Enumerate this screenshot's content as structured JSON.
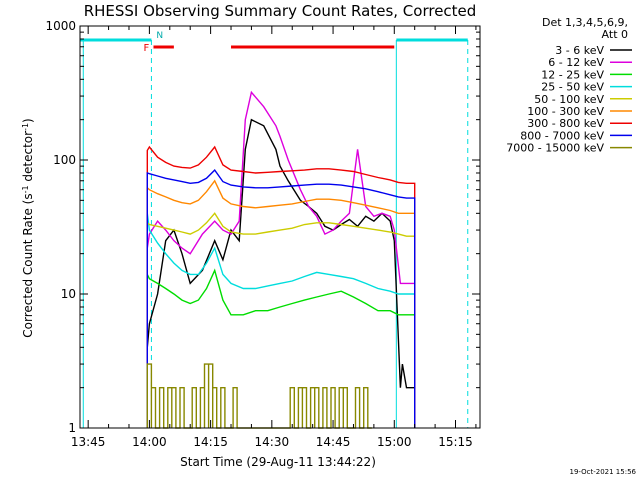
{
  "chart_data": {
    "type": "line",
    "title": "RHESSI Observing Summary Count Rates, Corrected",
    "xlabel": "Start Time (29-Aug-11 13:44:22)",
    "ylabel_main": "Corrected Count Rate (s",
    "ylabel_sup1": "-1",
    "ylabel_mid": " detector",
    "ylabel_sup2": "-1",
    "ylabel_end": ")",
    "yscale": "log",
    "ylim": [
      1,
      1000
    ],
    "xlim_minutes": [
      -2,
      96
    ],
    "x_ticks": [
      "13:45",
      "14:00",
      "14:15",
      "14:30",
      "14:45",
      "15:00",
      "15:15"
    ],
    "x_tick_minutes": [
      0,
      15,
      30,
      45,
      60,
      75,
      90
    ],
    "y_ticks": [
      "1",
      "10",
      "100",
      "1000"
    ],
    "y_tick_values": [
      1,
      10,
      100,
      1000
    ],
    "legend_header": [
      "Det 1,3,4,5,6,9,",
      "Att 0"
    ],
    "legend_position": "right",
    "timestamp": "19-Oct-2021 15:56",
    "flag_labels": {
      "flare": "F",
      "night": "N"
    },
    "series": [
      {
        "name": "3 - 6 keV",
        "color": "#000000",
        "x": [
          14.5,
          15,
          17,
          19,
          21,
          23,
          25,
          28,
          31,
          33,
          35,
          37,
          38.5,
          40,
          43,
          46,
          47,
          49,
          52,
          54,
          56,
          58,
          60,
          62,
          64,
          66,
          68,
          70,
          72,
          74,
          75,
          76.5,
          77,
          78,
          80
        ],
        "y": [
          4,
          6,
          10,
          25,
          30,
          20,
          12,
          15,
          25,
          18,
          30,
          25,
          120,
          200,
          180,
          120,
          90,
          70,
          50,
          45,
          40,
          32,
          30,
          33,
          36,
          32,
          38,
          35,
          40,
          35,
          25,
          2,
          3,
          2,
          2
        ]
      },
      {
        "name": "6 - 12 keV",
        "color": "#dd00dd",
        "x": [
          14.5,
          15,
          17,
          19,
          21,
          23,
          25,
          28,
          31,
          33,
          35,
          37,
          38.5,
          40,
          43,
          46,
          47,
          49,
          52,
          54,
          56,
          58,
          60,
          62,
          64,
          66,
          68,
          70,
          72,
          74,
          75,
          76.5,
          78,
          80
        ],
        "y": [
          22,
          28,
          35,
          30,
          25,
          22,
          20,
          28,
          35,
          30,
          28,
          35,
          200,
          320,
          250,
          180,
          150,
          100,
          60,
          45,
          38,
          28,
          30,
          35,
          40,
          120,
          45,
          38,
          40,
          38,
          30,
          12,
          12,
          12
        ]
      },
      {
        "name": "12 - 25 keV",
        "color": "#00dd00",
        "x": [
          14.5,
          15,
          17,
          19,
          21,
          23,
          25,
          27,
          29,
          31,
          33,
          35,
          38,
          41,
          44,
          47,
          50,
          53,
          56,
          59,
          62,
          65,
          68,
          71,
          74,
          76,
          78,
          80
        ],
        "y": [
          14,
          13,
          12,
          11,
          10,
          9,
          8.5,
          9,
          11,
          15,
          9,
          7,
          7,
          7.5,
          7.5,
          8,
          8.5,
          9,
          9.5,
          10,
          10.5,
          9.5,
          8.5,
          7.5,
          7.5,
          7,
          7,
          7
        ]
      },
      {
        "name": "25 - 50 keV",
        "color": "#00dddd",
        "x": [
          14.5,
          15,
          17,
          19,
          21,
          23,
          25,
          27,
          29,
          31,
          33,
          35,
          38,
          41,
          44,
          47,
          50,
          53,
          56,
          59,
          62,
          65,
          68,
          71,
          74,
          76,
          78,
          80
        ],
        "y": [
          40,
          30,
          24,
          20,
          17,
          15,
          14,
          14,
          17,
          22,
          14,
          12,
          11,
          11,
          11.5,
          12,
          12.5,
          13.5,
          14.5,
          14,
          13.5,
          13,
          12,
          11,
          10.5,
          10,
          10,
          10
        ]
      },
      {
        "name": "50 - 100 keV",
        "color": "#cccc00",
        "x": [
          14.5,
          15,
          17,
          19,
          21,
          23,
          25,
          27,
          29,
          31,
          33,
          35,
          38,
          41,
          44,
          47,
          50,
          53,
          56,
          59,
          62,
          65,
          68,
          71,
          74,
          76,
          78,
          80
        ],
        "y": [
          34,
          33,
          32,
          31,
          30,
          29,
          28,
          30,
          34,
          40,
          32,
          29,
          28,
          28,
          29,
          30,
          31,
          33,
          34,
          34,
          33,
          32,
          31,
          30,
          29,
          28,
          27,
          27
        ]
      },
      {
        "name": "100 - 300 keV",
        "color": "#ff8800",
        "x": [
          14.5,
          15,
          17,
          19,
          21,
          23,
          25,
          27,
          29,
          31,
          33,
          35,
          38,
          41,
          44,
          47,
          50,
          53,
          56,
          59,
          62,
          65,
          68,
          71,
          74,
          76,
          78,
          80
        ],
        "y": [
          62,
          60,
          56,
          53,
          50,
          48,
          47,
          50,
          58,
          70,
          52,
          47,
          45,
          44,
          45,
          46,
          47,
          49,
          51,
          51,
          50,
          48,
          46,
          44,
          42,
          40,
          40,
          40
        ]
      },
      {
        "name": "300 - 800 keV",
        "color": "#ee0000",
        "x": [
          14.5,
          15,
          17,
          19,
          21,
          23,
          25,
          27,
          29,
          31,
          33,
          35,
          38,
          41,
          44,
          47,
          50,
          53,
          56,
          59,
          62,
          65,
          68,
          71,
          74,
          76,
          78,
          80
        ],
        "y": [
          118,
          125,
          105,
          96,
          90,
          88,
          87,
          92,
          105,
          125,
          92,
          84,
          82,
          80,
          81,
          82,
          83,
          84,
          86,
          86,
          84,
          82,
          78,
          74,
          71,
          68,
          67,
          67
        ]
      },
      {
        "name": "800 - 7000 keV",
        "color": "#0000ee",
        "x": [
          14.5,
          15,
          17,
          19,
          21,
          23,
          25,
          27,
          29,
          31,
          33,
          35,
          38,
          41,
          44,
          47,
          50,
          53,
          56,
          59,
          62,
          65,
          68,
          71,
          74,
          76,
          78,
          80
        ],
        "y": [
          80,
          79,
          76,
          73,
          71,
          69,
          67,
          68,
          73,
          84,
          69,
          65,
          63,
          62,
          62,
          63,
          64,
          65,
          66,
          66,
          65,
          63,
          61,
          58,
          55,
          53,
          52,
          52
        ]
      },
      {
        "name": "7000 - 15000 keV",
        "color": "#888800",
        "steps": true,
        "x": [
          14.5,
          15.5,
          16.5,
          17.5,
          18.5,
          19.5,
          20.5,
          21.5,
          22.5,
          23.5,
          24.5,
          25.5,
          26.5,
          27.5,
          28.5,
          29.5,
          30.5,
          31.5,
          32.5,
          33.5,
          34.5,
          35.5,
          48.5,
          49.5,
          50.5,
          51.5,
          52.5,
          53.5,
          54.5,
          55.5,
          56.5,
          57.5,
          58.5,
          59.5,
          60.5,
          61.5,
          62.5,
          63.5,
          64.5,
          65.5,
          66.5,
          67.5,
          68.5
        ],
        "y": [
          3,
          2,
          1,
          2,
          1,
          2,
          2,
          1,
          2,
          1,
          1,
          2,
          1,
          2,
          3,
          3,
          2,
          1,
          2,
          1,
          1,
          2,
          1,
          2,
          1,
          2,
          2,
          1,
          2,
          2,
          1,
          2,
          1,
          2,
          1,
          2,
          2,
          1,
          1,
          2,
          1,
          2,
          1
        ]
      }
    ],
    "attenuator_segments": [
      {
        "start": -2,
        "end": 15.5
      },
      {
        "start": 75.5,
        "end": 93
      }
    ],
    "night_markers": [
      15.5,
      93
    ],
    "saa_markers": [
      -1.2,
      75.5
    ],
    "flare_segments": [
      {
        "start": 16,
        "end": 21
      },
      {
        "start": 35,
        "end": 75
      }
    ]
  }
}
